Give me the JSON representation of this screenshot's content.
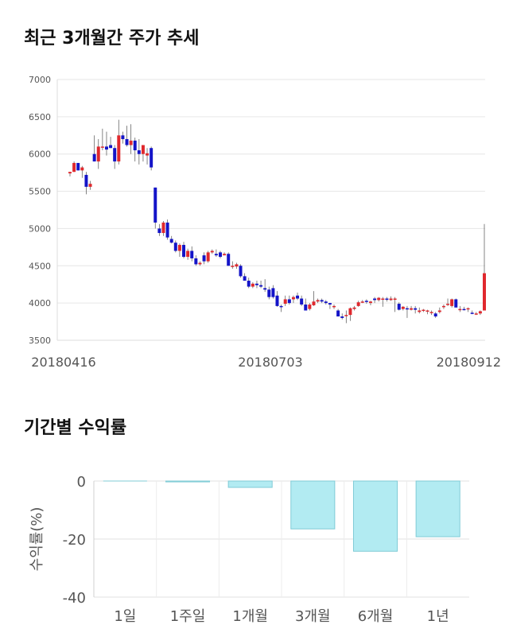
{
  "sections": {
    "price_title": "최근 3개월간 주가 추세",
    "return_title": "기간별 수익률"
  },
  "chart_data": [
    {
      "type": "candlestick",
      "title": "최근 3개월간 주가 추세",
      "ylim": [
        3500,
        7000
      ],
      "yticks": [
        7000,
        6500,
        6000,
        5500,
        5000,
        4500,
        4000,
        3500
      ],
      "xtick_labels": [
        "20180416",
        "20180703",
        "20180912"
      ],
      "grid": true,
      "up_color": "#e0282d",
      "down_color": "#1414c8",
      "candles": [
        [
          5740,
          5760,
          5700,
          5760
        ],
        [
          5760,
          5900,
          5760,
          5880
        ],
        [
          5880,
          5880,
          5780,
          5780
        ],
        [
          5780,
          5840,
          5680,
          5820
        ],
        [
          5720,
          5760,
          5460,
          5560
        ],
        [
          5560,
          5640,
          5520,
          5600
        ],
        [
          6000,
          6250,
          5900,
          5900
        ],
        [
          5900,
          6200,
          5800,
          6100
        ],
        [
          6100,
          6340,
          6050,
          6100
        ],
        [
          6100,
          6300,
          5980,
          6060
        ],
        [
          6120,
          6230,
          6080,
          6080
        ],
        [
          6080,
          6120,
          5800,
          5900
        ],
        [
          5900,
          6460,
          5860,
          6250
        ],
        [
          6250,
          6300,
          6140,
          6200
        ],
        [
          6200,
          6380,
          6100,
          6120
        ],
        [
          6120,
          6400,
          6000,
          6180
        ],
        [
          6180,
          6220,
          5900,
          6050
        ],
        [
          6050,
          6200,
          5860,
          6000
        ],
        [
          6000,
          6120,
          5900,
          6120
        ],
        [
          5980,
          6080,
          5860,
          6010
        ],
        [
          6080,
          6100,
          5780,
          5820
        ],
        [
          5550,
          5550,
          5000,
          5080
        ],
        [
          5000,
          5060,
          4900,
          4940
        ],
        [
          4940,
          5100,
          4900,
          5080
        ],
        [
          5080,
          5120,
          4850,
          4880
        ],
        [
          4860,
          4900,
          4800,
          4810
        ],
        [
          4810,
          4840,
          4680,
          4700
        ],
        [
          4700,
          4800,
          4620,
          4780
        ],
        [
          4780,
          4820,
          4600,
          4620
        ],
        [
          4620,
          4730,
          4580,
          4700
        ],
        [
          4700,
          4760,
          4560,
          4600
        ],
        [
          4600,
          4640,
          4500,
          4520
        ],
        [
          4520,
          4560,
          4500,
          4540
        ],
        [
          4640,
          4680,
          4520,
          4560
        ],
        [
          4560,
          4700,
          4540,
          4680
        ],
        [
          4680,
          4720,
          4660,
          4700
        ],
        [
          4660,
          4720,
          4620,
          4640
        ],
        [
          4680,
          4700,
          4600,
          4620
        ],
        [
          4640,
          4680,
          4640,
          4660
        ],
        [
          4660,
          4680,
          4500,
          4500
        ],
        [
          4500,
          4560,
          4460,
          4500
        ],
        [
          4490,
          4540,
          4460,
          4520
        ],
        [
          4500,
          4520,
          4340,
          4360
        ],
        [
          4360,
          4400,
          4300,
          4300
        ],
        [
          4300,
          4340,
          4200,
          4220
        ],
        [
          4220,
          4280,
          4200,
          4260
        ],
        [
          4260,
          4300,
          4200,
          4240
        ],
        [
          4240,
          4300,
          4200,
          4220
        ],
        [
          4200,
          4320,
          4150,
          4180
        ],
        [
          4180,
          4220,
          4050,
          4080
        ],
        [
          4200,
          4240,
          4060,
          4080
        ],
        [
          4100,
          4160,
          3950,
          3960
        ],
        [
          3960,
          3980,
          3880,
          3950
        ],
        [
          3990,
          4100,
          3960,
          4050
        ],
        [
          4050,
          4100,
          3980,
          4000
        ],
        [
          4050,
          4100,
          4000,
          4080
        ],
        [
          4100,
          4140,
          4040,
          4060
        ],
        [
          4060,
          4100,
          3960,
          3980
        ],
        [
          3980,
          4060,
          3900,
          3900
        ],
        [
          3920,
          4000,
          3900,
          3980
        ],
        [
          3970,
          4160,
          3960,
          4020
        ],
        [
          4020,
          4060,
          4000,
          4040
        ],
        [
          4040,
          4060,
          4000,
          4020
        ],
        [
          4020,
          4040,
          3980,
          4000
        ],
        [
          4000,
          4000,
          3920,
          3980
        ],
        [
          3960,
          3980,
          3920,
          3960
        ],
        [
          3900,
          3920,
          3820,
          3820
        ],
        [
          3820,
          3860,
          3780,
          3800
        ],
        [
          3830,
          3900,
          3730,
          3840
        ],
        [
          3840,
          3940,
          3760,
          3930
        ],
        [
          3920,
          3960,
          3900,
          3940
        ],
        [
          3960,
          4030,
          3950,
          4010
        ],
        [
          4010,
          4040,
          4000,
          4020
        ],
        [
          4030,
          4050,
          3990,
          4020
        ],
        [
          4000,
          4030,
          3970,
          4020
        ],
        [
          4060,
          4080,
          4000,
          4040
        ],
        [
          4040,
          4080,
          4020,
          4070
        ],
        [
          4060,
          4080,
          3950,
          4060
        ],
        [
          4060,
          4080,
          4020,
          4050
        ],
        [
          4040,
          4090,
          4030,
          4060
        ],
        [
          4050,
          4080,
          3880,
          4060
        ],
        [
          3990,
          4010,
          3900,
          3910
        ],
        [
          3920,
          3960,
          3900,
          3950
        ],
        [
          3930,
          3960,
          3800,
          3920
        ],
        [
          3910,
          3960,
          3900,
          3930
        ],
        [
          3930,
          3960,
          3860,
          3910
        ],
        [
          3880,
          3940,
          3860,
          3900
        ],
        [
          3900,
          3920,
          3880,
          3910
        ],
        [
          3890,
          3910,
          3850,
          3900
        ],
        [
          3880,
          3900,
          3840,
          3880
        ],
        [
          3860,
          3880,
          3800,
          3820
        ],
        [
          3880,
          3940,
          3860,
          3900
        ],
        [
          3950,
          3980,
          3920,
          3960
        ],
        [
          3980,
          4060,
          3960,
          3990
        ],
        [
          3960,
          4060,
          3940,
          4050
        ],
        [
          4050,
          4060,
          3940,
          3940
        ],
        [
          3920,
          3960,
          3880,
          3920
        ],
        [
          3920,
          3950,
          3900,
          3910
        ],
        [
          3920,
          3940,
          3880,
          3930
        ],
        [
          3870,
          3900,
          3850,
          3860
        ],
        [
          3860,
          3880,
          3840,
          3860
        ],
        [
          3860,
          3900,
          3840,
          3890
        ],
        [
          3900,
          5060,
          3900,
          4400
        ]
      ]
    },
    {
      "type": "bar",
      "title": "기간별 수익률",
      "categories": [
        "1일",
        "1주일",
        "1개월",
        "3개월",
        "6개월",
        "1년"
      ],
      "values": [
        0,
        -0.3,
        -2.2,
        -16.5,
        -24.2,
        -19.2
      ],
      "ylabel": "수익률(%)",
      "ylim": [
        -40,
        0
      ],
      "yticks": [
        0,
        -20,
        -40
      ],
      "bar_color": "#b2ebf2",
      "bar_edge_color": "#80cbd6",
      "grid": true
    }
  ]
}
